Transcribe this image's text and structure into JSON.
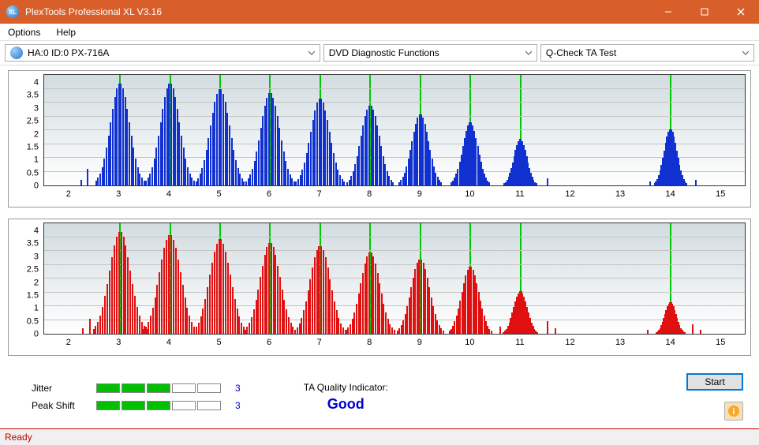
{
  "window": {
    "title": "PlexTools Professional XL V3.16",
    "icon_label": "XL",
    "buttons": {
      "min": "minimize-icon",
      "max": "maximize-icon",
      "close": "close-icon"
    }
  },
  "menubar": {
    "items": [
      "Options",
      "Help"
    ]
  },
  "dropdowns": {
    "drive": "HA:0 ID:0  PX-716A",
    "function": "DVD Diagnostic Functions",
    "test": "Q-Check TA Test"
  },
  "charts": {
    "y_ticks": [
      "0",
      "0.5",
      "1",
      "1.5",
      "2",
      "2.5",
      "3",
      "3.5",
      "4"
    ],
    "y_max": 4,
    "x_ticks": [
      2,
      3,
      4,
      5,
      6,
      7,
      8,
      9,
      10,
      11,
      12,
      13,
      14,
      15
    ],
    "x_min": 1.5,
    "x_max": 15.5,
    "markers": [
      3,
      4,
      5,
      6,
      7,
      8,
      9,
      10,
      11,
      14
    ],
    "grid_color": "#c4c4c4",
    "top": {
      "color": "#1030d0",
      "peaks": [
        {
          "c": 3,
          "h": 3.7,
          "w": 0.48
        },
        {
          "c": 4,
          "h": 3.7,
          "w": 0.48
        },
        {
          "c": 5,
          "h": 3.5,
          "w": 0.48
        },
        {
          "c": 6,
          "h": 3.35,
          "w": 0.48
        },
        {
          "c": 7,
          "h": 3.15,
          "w": 0.48
        },
        {
          "c": 8,
          "h": 2.9,
          "w": 0.46
        },
        {
          "c": 9,
          "h": 2.6,
          "w": 0.42
        },
        {
          "c": 10,
          "h": 2.3,
          "w": 0.38
        },
        {
          "c": 11,
          "h": 1.7,
          "w": 0.32
        },
        {
          "c": 14,
          "h": 2.05,
          "w": 0.32
        }
      ],
      "stragglers": [
        {
          "x": 2.35,
          "h": 0.6
        },
        {
          "x": 2.22,
          "h": 0.2
        },
        {
          "x": 11.55,
          "h": 0.25
        },
        {
          "x": 13.6,
          "h": 0.15
        },
        {
          "x": 14.5,
          "h": 0.2
        }
      ]
    },
    "bottom": {
      "color": "#e01010",
      "peaks": [
        {
          "c": 3,
          "h": 3.7,
          "w": 0.53
        },
        {
          "c": 4,
          "h": 3.6,
          "w": 0.53
        },
        {
          "c": 5,
          "h": 3.45,
          "w": 0.52
        },
        {
          "c": 6,
          "h": 3.3,
          "w": 0.5
        },
        {
          "c": 7,
          "h": 3.2,
          "w": 0.5
        },
        {
          "c": 8,
          "h": 2.95,
          "w": 0.48
        },
        {
          "c": 9,
          "h": 2.7,
          "w": 0.46
        },
        {
          "c": 10,
          "h": 2.45,
          "w": 0.42
        },
        {
          "c": 11,
          "h": 1.55,
          "w": 0.34
        },
        {
          "c": 14,
          "h": 1.15,
          "w": 0.28
        }
      ],
      "stragglers": [
        {
          "x": 2.4,
          "h": 0.55
        },
        {
          "x": 2.25,
          "h": 0.2
        },
        {
          "x": 11.55,
          "h": 0.45
        },
        {
          "x": 11.7,
          "h": 0.2
        },
        {
          "x": 10.6,
          "h": 0.25
        },
        {
          "x": 13.55,
          "h": 0.15
        },
        {
          "x": 14.45,
          "h": 0.35
        },
        {
          "x": 14.6,
          "h": 0.15
        }
      ]
    }
  },
  "metrics": {
    "jitter": {
      "label": "Jitter",
      "segments": 5,
      "filled": 3,
      "value": "3"
    },
    "peak_shift": {
      "label": "Peak Shift",
      "segments": 5,
      "filled": 3,
      "value": "3"
    }
  },
  "quality": {
    "label": "TA Quality Indicator:",
    "value": "Good"
  },
  "buttons": {
    "start": "Start"
  },
  "status": "Ready"
}
